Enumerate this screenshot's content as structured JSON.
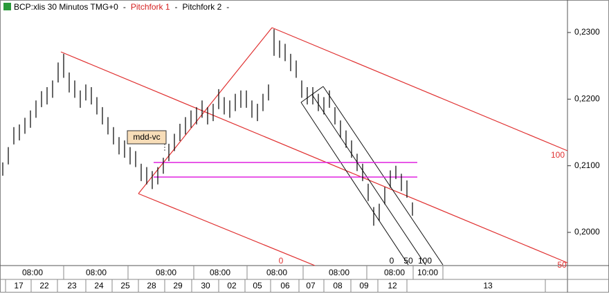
{
  "chart_data": {
    "type": "hilo",
    "title_parts": [
      {
        "text": "BCP:xlis 30 Minutos TMG+0",
        "color": "#000000"
      },
      {
        "text": "-",
        "color": "#000000"
      },
      {
        "text": "Pitchfork 1",
        "color": "#d42020"
      },
      {
        "text": "-",
        "color": "#000000"
      },
      {
        "text": "Pitchfork 2",
        "color": "#000000"
      },
      {
        "text": "-",
        "color": "#000000"
      }
    ],
    "high": [
      0.2105,
      0.2128,
      0.2158,
      0.2162,
      0.2172,
      0.2183,
      0.2198,
      0.2212,
      0.2218,
      0.2228,
      0.2255,
      0.2268,
      0.224,
      0.2228,
      0.2213,
      0.2222,
      0.2218,
      0.2203,
      0.2188,
      0.2173,
      0.2158,
      0.2143,
      0.2138,
      0.2128,
      0.2122,
      0.2103,
      0.2098,
      0.2092,
      0.2098,
      0.2112,
      0.2133,
      0.2148,
      0.2163,
      0.2173,
      0.2183,
      0.2188,
      0.2198,
      0.2188,
      0.2193,
      0.2215,
      0.2203,
      0.2198,
      0.2208,
      0.2213,
      0.2213,
      0.2198,
      0.2193,
      0.2208,
      0.2222,
      0.2305,
      0.2288,
      0.2283,
      0.2268,
      0.2258,
      0.2228,
      0.2218,
      0.2218,
      0.2208,
      0.2203,
      0.2213,
      0.2188,
      0.2168,
      0.2153,
      0.2138,
      0.2118,
      0.2103,
      0.2073,
      0.2038,
      0.2043,
      0.2068,
      0.2093,
      0.21,
      0.2088,
      0.2078,
      0.2045
    ],
    "low": [
      0.2085,
      0.2102,
      0.2132,
      0.2138,
      0.2148,
      0.2157,
      0.2172,
      0.2188,
      0.2192,
      0.2202,
      0.2225,
      0.2232,
      0.221,
      0.2202,
      0.2187,
      0.2198,
      0.2192,
      0.2177,
      0.2162,
      0.2147,
      0.2132,
      0.2117,
      0.2112,
      0.2102,
      0.2098,
      0.2077,
      0.2072,
      0.2065,
      0.2072,
      0.2088,
      0.2107,
      0.2122,
      0.2137,
      0.2147,
      0.2157,
      0.2162,
      0.2172,
      0.2162,
      0.2167,
      0.2185,
      0.2177,
      0.2172,
      0.2182,
      0.2187,
      0.2187,
      0.2172,
      0.2167,
      0.2182,
      0.2198,
      0.2265,
      0.2262,
      0.2257,
      0.2242,
      0.2232,
      0.2202,
      0.2192,
      0.2192,
      0.2182,
      0.2177,
      0.2187,
      0.2162,
      0.2142,
      0.2127,
      0.2112,
      0.2092,
      0.2077,
      0.2047,
      0.201,
      0.2017,
      0.2042,
      0.2067,
      0.208,
      0.2062,
      0.2052,
      0.2025
    ],
    "bar_color": "#000000",
    "ylim": [
      0.19512,
      0.23488
    ],
    "yticks": [
      {
        "value": 0.23,
        "label": "0,2300"
      },
      {
        "value": 0.22,
        "label": "0,2200"
      },
      {
        "value": 0.21,
        "label": "0,2100"
      },
      {
        "value": 0.2,
        "label": "0,2000"
      }
    ],
    "hlines": [
      {
        "value": 0.2105,
        "color": "#e020e0"
      },
      {
        "value": 0.2083,
        "color": "#e020e0"
      }
    ],
    "time_labels": [
      "08:00",
      "08:00",
      "08:00",
      "08:00",
      "08:00",
      "08:00",
      "08:00",
      "10:00"
    ],
    "date_labels": [
      "17",
      "22",
      "23",
      "24",
      "25",
      "28",
      "29",
      "30",
      "02",
      "05",
      "06",
      "07",
      "08",
      "09",
      "12",
      "13"
    ],
    "annotation": "mdd-vc",
    "pitchfork1_labels": [
      "0",
      "100",
      "50"
    ],
    "pitchfork2_labels": [
      "0",
      "50",
      "100"
    ]
  }
}
